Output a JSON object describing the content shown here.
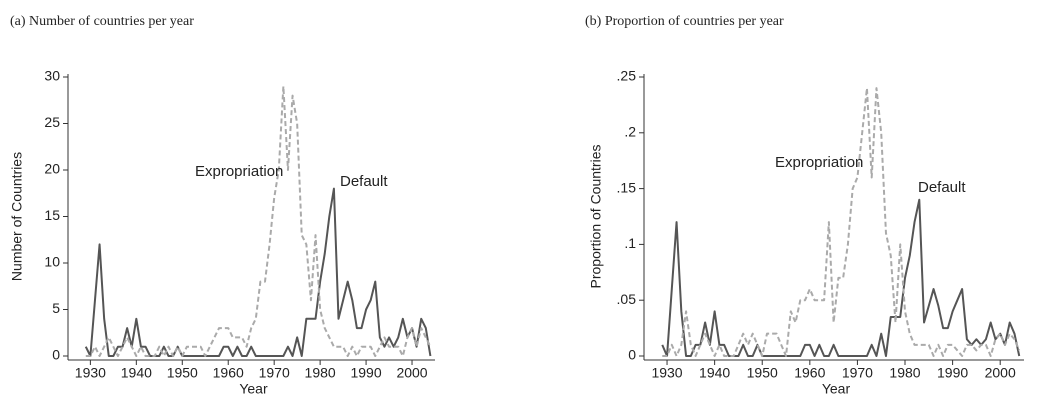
{
  "chart_data": [
    {
      "type": "line",
      "title": "(a) Number of countries per year",
      "xlabel": "Year",
      "ylabel": "Number of Countries",
      "x": [
        1929,
        1930,
        1931,
        1932,
        1933,
        1934,
        1935,
        1936,
        1937,
        1938,
        1939,
        1940,
        1941,
        1942,
        1943,
        1944,
        1945,
        1946,
        1947,
        1948,
        1949,
        1950,
        1951,
        1952,
        1953,
        1954,
        1955,
        1956,
        1957,
        1958,
        1959,
        1960,
        1961,
        1962,
        1963,
        1964,
        1965,
        1966,
        1967,
        1968,
        1969,
        1970,
        1971,
        1972,
        1973,
        1974,
        1975,
        1976,
        1977,
        1978,
        1979,
        1980,
        1981,
        1982,
        1983,
        1984,
        1985,
        1986,
        1987,
        1988,
        1989,
        1990,
        1991,
        1992,
        1993,
        1994,
        1995,
        1996,
        1997,
        1998,
        1999,
        2000,
        2001,
        2002,
        2003,
        2004
      ],
      "series": [
        {
          "name": "Default",
          "color": "#555555",
          "style": "solid",
          "values": [
            1,
            0,
            6,
            12,
            4,
            0,
            0,
            1,
            1,
            3,
            1,
            4,
            1,
            1,
            0,
            0,
            0,
            1,
            0,
            0,
            1,
            0,
            0,
            0,
            0,
            0,
            0,
            0,
            0,
            0,
            1,
            1,
            0,
            1,
            0,
            0,
            1,
            0,
            0,
            0,
            0,
            0,
            0,
            0,
            1,
            0,
            2,
            0,
            4,
            4,
            4,
            8,
            11,
            15,
            18,
            4,
            6,
            8,
            6,
            3,
            3,
            5,
            6,
            8,
            2,
            1,
            2,
            1,
            2,
            4,
            2,
            3,
            1,
            4,
            3,
            0
          ]
        },
        {
          "name": "Expropriation",
          "color": "#aaaaaa",
          "style": "dashed",
          "values": [
            0,
            0,
            1,
            0,
            1,
            2,
            1,
            0,
            1,
            2,
            1,
            0,
            1,
            0,
            0,
            0,
            1,
            0,
            1,
            0,
            1,
            0,
            1,
            1,
            1,
            1,
            0,
            1,
            2,
            3,
            3,
            3,
            2,
            2,
            2,
            1,
            3,
            4,
            8,
            8,
            12,
            17,
            20,
            29,
            20,
            28,
            25,
            13,
            12,
            6,
            13,
            5,
            3,
            2,
            1,
            1,
            1,
            0,
            1,
            0,
            1,
            1,
            1,
            0,
            1,
            2,
            1,
            1,
            1,
            0,
            2,
            3,
            1,
            3,
            2,
            1
          ]
        }
      ],
      "annotations": [
        "Expropriation",
        "Default"
      ],
      "xlim": [
        1926,
        2005
      ],
      "xticks": [
        1930,
        1940,
        1950,
        1960,
        1970,
        1980,
        1990,
        2000
      ],
      "ylim": [
        0,
        30
      ],
      "yticks": [
        0,
        5,
        10,
        15,
        20,
        25,
        30
      ]
    },
    {
      "type": "line",
      "title": "(b) Proportion of countries per year",
      "xlabel": "Year",
      "ylabel": "Proportion of Countries",
      "x": [
        1929,
        1930,
        1931,
        1932,
        1933,
        1934,
        1935,
        1936,
        1937,
        1938,
        1939,
        1940,
        1941,
        1942,
        1943,
        1944,
        1945,
        1946,
        1947,
        1948,
        1949,
        1950,
        1951,
        1952,
        1953,
        1954,
        1955,
        1956,
        1957,
        1958,
        1959,
        1960,
        1961,
        1962,
        1963,
        1964,
        1965,
        1966,
        1967,
        1968,
        1969,
        1970,
        1971,
        1972,
        1973,
        1974,
        1975,
        1976,
        1977,
        1978,
        1979,
        1980,
        1981,
        1982,
        1983,
        1984,
        1985,
        1986,
        1987,
        1988,
        1989,
        1990,
        1991,
        1992,
        1993,
        1994,
        1995,
        1996,
        1997,
        1998,
        1999,
        2000,
        2001,
        2002,
        2003,
        2004
      ],
      "series": [
        {
          "name": "Default",
          "color": "#555555",
          "style": "solid",
          "values": [
            0.01,
            0,
            0.06,
            0.12,
            0.04,
            0,
            0,
            0.01,
            0.01,
            0.03,
            0.01,
            0.04,
            0.01,
            0.01,
            0,
            0,
            0,
            0.01,
            0,
            0,
            0.01,
            0,
            0,
            0,
            0,
            0,
            0,
            0,
            0,
            0,
            0.01,
            0.01,
            0,
            0.01,
            0,
            0,
            0.01,
            0,
            0,
            0,
            0,
            0,
            0,
            0,
            0.01,
            0,
            0.02,
            0,
            0.035,
            0.035,
            0.035,
            0.07,
            0.09,
            0.12,
            0.14,
            0.03,
            0.045,
            0.06,
            0.045,
            0.025,
            0.025,
            0.04,
            0.05,
            0.06,
            0.015,
            0.01,
            0.015,
            0.01,
            0.015,
            0.03,
            0.015,
            0.02,
            0.01,
            0.03,
            0.02,
            0
          ]
        },
        {
          "name": "Expropriation",
          "color": "#aaaaaa",
          "style": "dashed",
          "values": [
            0,
            0,
            0.01,
            0,
            0.01,
            0.04,
            0.01,
            0,
            0.01,
            0.02,
            0.01,
            0,
            0.01,
            0,
            0,
            0,
            0.01,
            0.02,
            0.01,
            0.02,
            0.01,
            0,
            0.02,
            0.02,
            0.02,
            0.01,
            0,
            0.04,
            0.03,
            0.05,
            0.05,
            0.06,
            0.05,
            0.05,
            0.05,
            0.12,
            0.03,
            0.07,
            0.07,
            0.1,
            0.15,
            0.16,
            0.2,
            0.24,
            0.16,
            0.24,
            0.2,
            0.11,
            0.09,
            0.03,
            0.1,
            0.04,
            0.02,
            0.01,
            0.01,
            0.01,
            0.01,
            0,
            0.01,
            0,
            0.01,
            0.01,
            0.005,
            0,
            0.01,
            0.01,
            0.005,
            0.01,
            0.01,
            0,
            0.015,
            0.02,
            0.01,
            0.02,
            0.015,
            0.005
          ]
        }
      ],
      "annotations": [
        "Expropriation",
        "Default"
      ],
      "xlim": [
        1926,
        2005
      ],
      "xticks": [
        1930,
        1940,
        1950,
        1960,
        1970,
        1980,
        1990,
        2000
      ],
      "ylim": [
        0,
        0.25
      ],
      "yticks": [
        0,
        {
          "value": 0.05,
          "label": ".05"
        },
        {
          "value": 0.1,
          "label": ".1"
        },
        {
          "value": 0.15,
          "label": ".15"
        },
        {
          "value": 0.2,
          "label": ".2"
        },
        {
          "value": 0.25,
          "label": ".25"
        }
      ]
    }
  ]
}
